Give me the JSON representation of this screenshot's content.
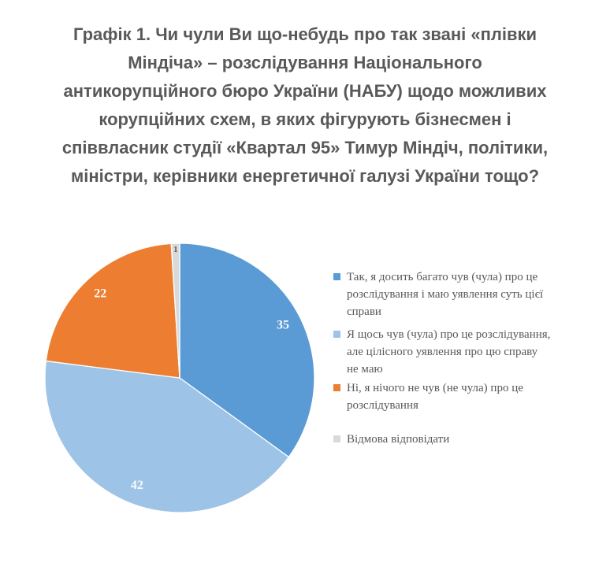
{
  "title_display": "Графік 1. Чи чули Ви що-небудь про так звані «плівки\nМіндіча» – розслідування Національного\nантикорупційного бюро України (НАБУ) щодо можливих\nкорупційних схем, в яких фігурують бізнесмен і\nспіввласник студії «Квартал 95» Тимур Міндіч, політики,\nміністри, керівники енергетичної галузі України тощо?",
  "chart_data": {
    "type": "pie",
    "title": "Графік 1. Чи чули Ви що-небудь про так звані «плівки Міндіча» – розслідування Національного антикорупційного бюро України (НАБУ) щодо можливих корупційних схем, в яких фігурують бізнесмен і співвласник студії «Квартал 95» Тимур Міндіч, політики, міністри, керівники енергетичної галузі України тощо?",
    "labels": [
      "Так, я досить багато чув (чула) про це\nрозслідування і маю уявлення суть цієї\nсправи",
      "Я щось чув (чула) про це розслідування,\nале цілісного уявлення про цю справу\nне маю",
      "Ні, я нічого не чув (не чула) про це\nрозслідування",
      "Відмова відповідати"
    ],
    "values": [
      35,
      42,
      22,
      1
    ],
    "units": "percent",
    "colors": [
      "#5B9BD5",
      "#9DC3E6",
      "#ED7D31",
      "#D9D9D9"
    ],
    "start_angle_deg": 0,
    "direction": "clockwise",
    "legend_position": "right",
    "data_labels": "values",
    "data_label_color": "#FAFAFA",
    "small_data_label_color": "#595959",
    "title_color": "#595959",
    "legend_text_color": "#595959",
    "background": "#FFFFFF"
  }
}
